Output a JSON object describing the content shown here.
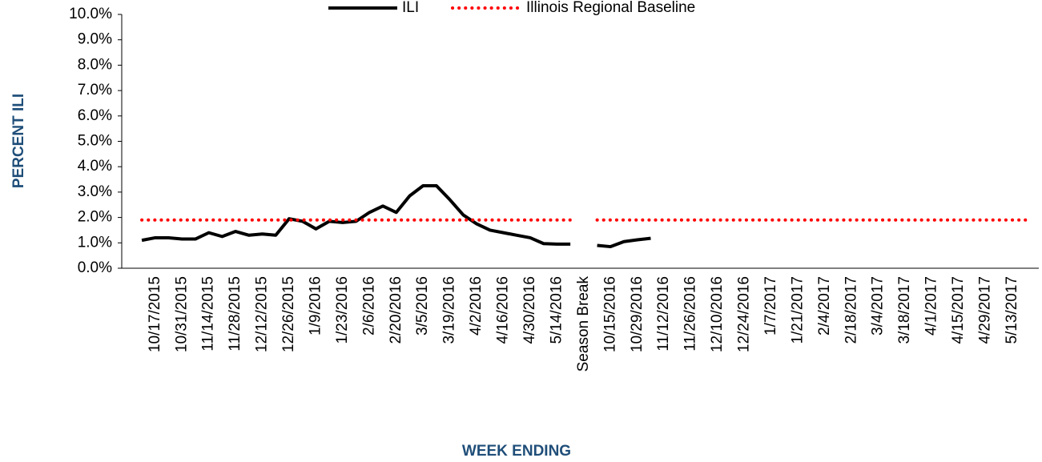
{
  "chart_data": {
    "type": "line",
    "x_label": "WEEK ENDING",
    "y_label": "PERCENT ILI",
    "categories": [
      null,
      null,
      "10/17/2015",
      null,
      "10/31/2015",
      null,
      "11/14/2015",
      null,
      "11/28/2015",
      null,
      "12/12/2015",
      null,
      "12/26/2015",
      null,
      "1/9/2016",
      null,
      "1/23/2016",
      null,
      "2/6/2016",
      null,
      "2/20/2016",
      null,
      "3/5/2016",
      null,
      "3/19/2016",
      null,
      "4/2/2016",
      null,
      "4/16/2016",
      null,
      "4/30/2016",
      null,
      "5/14/2016",
      null,
      "Season Break",
      null,
      "10/15/2016",
      null,
      "10/29/2016",
      null,
      "11/12/2016",
      null,
      "11/26/2016",
      null,
      "12/10/2016",
      null,
      "12/24/2016",
      null,
      "1/7/2017",
      null,
      "1/21/2017",
      null,
      "2/4/2017",
      null,
      "2/18/2017",
      null,
      "3/4/2017",
      null,
      "3/18/2017",
      null,
      "4/1/2017",
      null,
      "4/15/2017",
      null,
      "4/29/2017",
      null,
      "5/13/2017",
      null
    ],
    "series": [
      {
        "name": "ILI",
        "color": "#000000",
        "dotted": false,
        "values": [
          null,
          1.1,
          1.2,
          1.2,
          1.15,
          1.15,
          1.4,
          1.25,
          1.45,
          1.3,
          1.35,
          1.3,
          1.95,
          1.85,
          1.55,
          1.85,
          1.8,
          1.85,
          2.2,
          2.45,
          2.2,
          2.85,
          3.25,
          3.25,
          2.7,
          2.1,
          1.75,
          1.5,
          1.4,
          1.3,
          1.2,
          0.97,
          0.95,
          0.95,
          null,
          0.9,
          0.85,
          1.05,
          1.12,
          1.18,
          null,
          null,
          null,
          null,
          null,
          null,
          null,
          null,
          null,
          null,
          null,
          null,
          null,
          null,
          null,
          null,
          null,
          null,
          null,
          null,
          null,
          null,
          null,
          null,
          null,
          null,
          null,
          null
        ]
      },
      {
        "name": "Illinois Regional Baseline",
        "color": "#ff0000",
        "dotted": true,
        "values": [
          null,
          1.9,
          1.9,
          1.9,
          1.9,
          1.9,
          1.9,
          1.9,
          1.9,
          1.9,
          1.9,
          1.9,
          1.9,
          1.9,
          1.9,
          1.9,
          1.9,
          1.9,
          1.9,
          1.9,
          1.9,
          1.9,
          1.9,
          1.9,
          1.9,
          1.9,
          1.9,
          1.9,
          1.9,
          1.9,
          1.9,
          1.9,
          1.9,
          1.9,
          null,
          1.9,
          1.9,
          1.9,
          1.9,
          1.9,
          1.9,
          1.9,
          1.9,
          1.9,
          1.9,
          1.9,
          1.9,
          1.9,
          1.9,
          1.9,
          1.9,
          1.9,
          1.9,
          1.9,
          1.9,
          1.9,
          1.9,
          1.9,
          1.9,
          1.9,
          1.9,
          1.9,
          1.9,
          1.9,
          1.9,
          1.9,
          1.9,
          1.9
        ]
      }
    ],
    "ylim": [
      0,
      10
    ],
    "yticks": [
      {
        "value": 0,
        "label": "0.0%"
      },
      {
        "value": 1,
        "label": "1.0%"
      },
      {
        "value": 2,
        "label": "2.0%"
      },
      {
        "value": 3,
        "label": "3.0%"
      },
      {
        "value": 4,
        "label": "4.0%"
      },
      {
        "value": 5,
        "label": "5.0%"
      },
      {
        "value": 6,
        "label": "6.0%"
      },
      {
        "value": 7,
        "label": "7.0%"
      },
      {
        "value": 8,
        "label": "8.0%"
      },
      {
        "value": 9,
        "label": "9.0%"
      },
      {
        "value": 10,
        "label": "10.0%"
      }
    ],
    "grid": false,
    "legend": "top"
  }
}
